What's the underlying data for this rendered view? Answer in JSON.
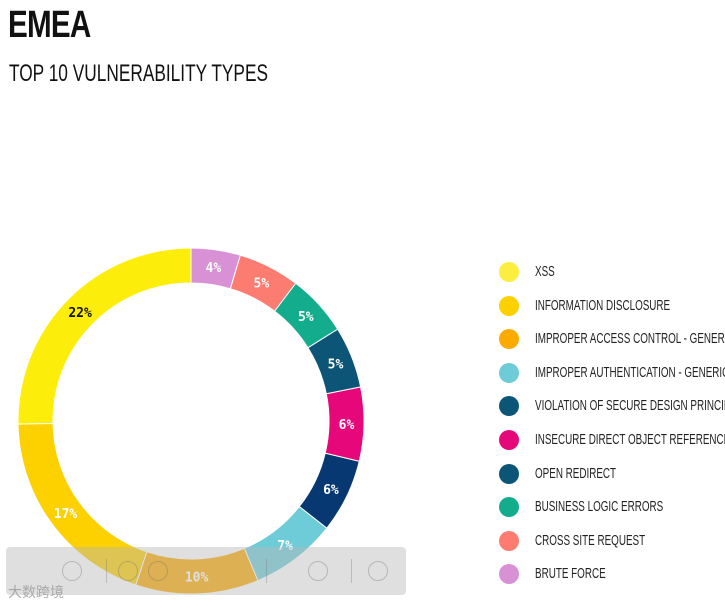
{
  "header": {
    "title": "EMEA",
    "subtitle": "TOP 10 VULNERABILITY TYPES"
  },
  "chart_data": {
    "type": "pie",
    "style": "donut",
    "legend_position": "right",
    "slices": [
      {
        "label": "XSS",
        "value": 22,
        "display": "22%",
        "color": "#fcee0a"
      },
      {
        "label": "INFORMATION DISCLOSURE",
        "value": 17,
        "display": "17%",
        "color": "#fdd000"
      },
      {
        "label": "IMPROPER ACCESS CONTROL - GENERIC",
        "value": 10,
        "display": "10%",
        "color": "#fbab00"
      },
      {
        "label": "IMPROPER AUTHENTICATION - GENERIC",
        "value": 7,
        "display": "7%",
        "color": "#6dccd8"
      },
      {
        "label": "VIOLATION OF SECURE DESIGN PRINCIPLES",
        "value": 6,
        "display": "6%",
        "color": "#083872"
      },
      {
        "label": "INSECURE DIRECT OBJECT REFERENCE",
        "value": 6,
        "display": "6%",
        "color": "#e6087a"
      },
      {
        "label": "OPEN REDIRECT",
        "value": 5,
        "display": "5%",
        "color": "#0d5576"
      },
      {
        "label": "BUSINESS LOGIC ERRORS",
        "value": 5,
        "display": "5%",
        "color": "#13ad8d"
      },
      {
        "label": "CROSS SITE REQUEST",
        "value": 5,
        "display": "5%",
        "color": "#fc7c72"
      },
      {
        "label": "BRUTE FORCE",
        "value": 4,
        "display": "4%",
        "color": "#d991d6"
      }
    ],
    "legend": [
      {
        "label": "XSS",
        "color": "#fbee3f"
      },
      {
        "label": "INFORMATION DISCLOSURE",
        "color": "#fdd000"
      },
      {
        "label": "IMPROPER ACCESS CONTROL - GENERIC",
        "color": "#fbab00"
      },
      {
        "label": "IMPROPER AUTHENTICATION - GENERIC",
        "color": "#6dccd8"
      },
      {
        "label": "VIOLATION OF SECURE DESIGN PRINCIPLES",
        "color": "#0d5576"
      },
      {
        "label": "INSECURE DIRECT OBJECT REFERENCE",
        "color": "#e6087a"
      },
      {
        "label": "OPEN REDIRECT",
        "color": "#0d5576"
      },
      {
        "label": "BUSINESS LOGIC ERRORS",
        "color": "#13ad8d"
      },
      {
        "label": "CROSS SITE REQUEST",
        "color": "#fc7c72"
      },
      {
        "label": "BRUTE FORCE",
        "color": "#d991d6"
      }
    ],
    "dark_label_slices": [
      "XSS"
    ]
  },
  "overlay": {
    "toolbar_icons": [
      "grid-icon",
      "plus-circle-icon",
      "download-circle-icon",
      "edit-icon",
      "share-icon",
      "expand-icon"
    ],
    "watermark_text": "大数跨境"
  }
}
